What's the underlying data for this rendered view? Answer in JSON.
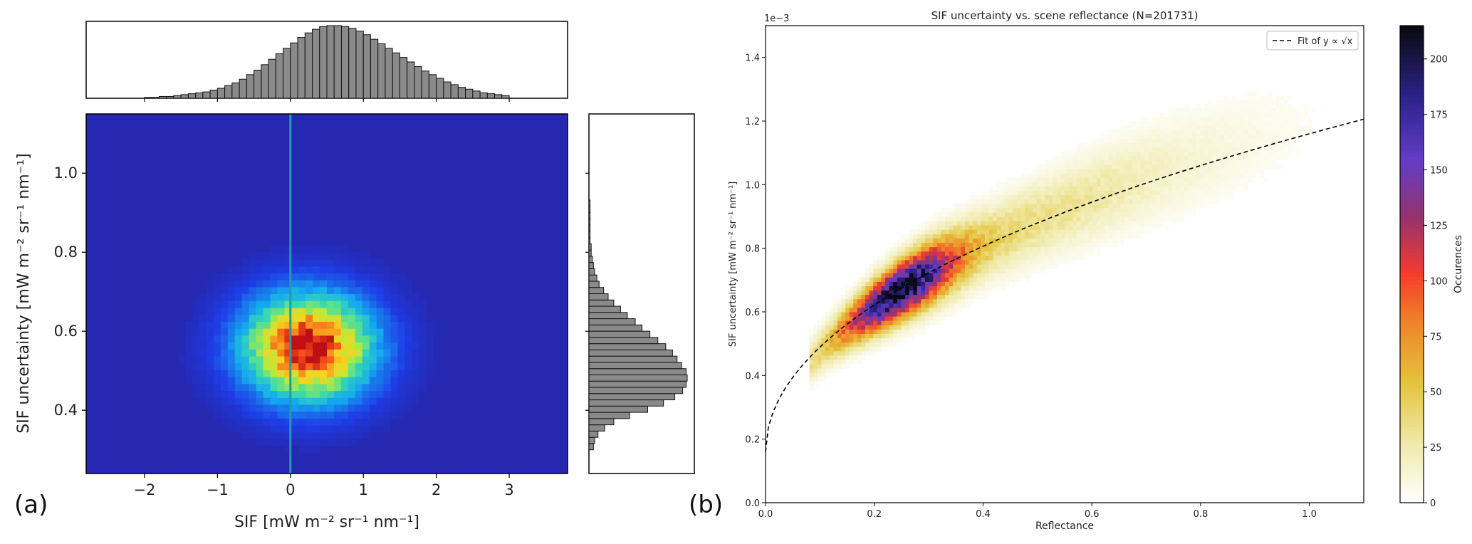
{
  "chart_data": [
    {
      "type": "heatmap",
      "panel_label": "(a)",
      "title": "",
      "xlabel": "SIF [mW m⁻² sr⁻¹ nm⁻¹]",
      "ylabel": "SIF uncertainty [mW m⁻² sr⁻¹ nm⁻¹]",
      "xlim": [
        -2.8,
        3.8
      ],
      "ylim": [
        0.24,
        1.15
      ],
      "xticks": [
        -2,
        -1,
        0,
        1,
        2,
        3
      ],
      "yticks": [
        0.4,
        0.6,
        0.8,
        1.0
      ],
      "vertical_line_x": 0,
      "density_center": {
        "x": 0.25,
        "y": 0.56
      },
      "density_spread": {
        "x": 0.6,
        "y": 0.09
      },
      "colormap": "jet",
      "top_histogram": {
        "bin_start": -2.0,
        "bin_width": 0.1,
        "counts": [
          1,
          1,
          2,
          2,
          3,
          4,
          5,
          6,
          7,
          9,
          11,
          14,
          17,
          21,
          26,
          31,
          37,
          43,
          49,
          55,
          61,
          67,
          72,
          76,
          79,
          80,
          80,
          79,
          77,
          74,
          70,
          65,
          60,
          55,
          50,
          45,
          40,
          35,
          30,
          26,
          22,
          18,
          15,
          12,
          10,
          8,
          6,
          5,
          4,
          3
        ]
      },
      "right_histogram": {
        "bin_start": 0.3,
        "bin_width": 0.0158,
        "counts": [
          4,
          5,
          8,
          14,
          22,
          36,
          52,
          66,
          76,
          83,
          86,
          87,
          86,
          82,
          78,
          74,
          68,
          61,
          54,
          47,
          41,
          34,
          28,
          22,
          17,
          13,
          9,
          7,
          5,
          4,
          3,
          2,
          2,
          1,
          1,
          1,
          1,
          1,
          1,
          1
        ]
      }
    },
    {
      "type": "heatmap",
      "panel_label": "(b)",
      "title": "SIF uncertainty vs. scene reflectance (N=201731)",
      "xlabel": "Reflectance",
      "ylabel": "SIF uncertainty [mW m⁻² sr⁻¹ nm⁻¹]",
      "offset_text": "1e−3",
      "xlim": [
        0.0,
        1.1
      ],
      "ylim": [
        0.0,
        1.5
      ],
      "xticks": [
        0.0,
        0.2,
        0.4,
        0.6,
        0.8,
        1.0
      ],
      "yticks": [
        0.0,
        0.2,
        0.4,
        0.6,
        0.8,
        1.0,
        1.2,
        1.4
      ],
      "legend": {
        "label": "Fit of y ∝ √x",
        "position": "top-right",
        "style": "dashed"
      },
      "fit_curve": {
        "coefficient": 1.06,
        "intercept": 0.16
      },
      "density_peak": {
        "x": 0.25,
        "y": 0.59
      },
      "colorbar": {
        "label": "Occurences",
        "range": [
          0,
          215
        ],
        "ticks": [
          0,
          25,
          50,
          75,
          100,
          125,
          150,
          175,
          200
        ],
        "colormap": "CMRmap_r"
      }
    }
  ]
}
